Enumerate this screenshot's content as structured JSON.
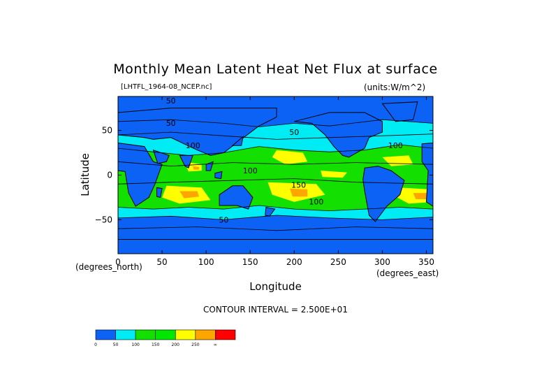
{
  "chart_data": {
    "type": "heatmap",
    "title": "Monthly Mean Latent Heat Net Flux at surface",
    "file_label": "[LHTFL_1964-08_NCEP.nc]",
    "units_label": "(units:W/m^2)",
    "xlabel": "Longitude",
    "ylabel": "Latitude",
    "x_units_label": "(degrees_east)",
    "y_units_label": "(degrees_north)",
    "contour_interval_label": "CONTOUR INTERVAL = 2.500E+01",
    "xlim": [
      0,
      357.5
    ],
    "ylim": [
      -88,
      88
    ],
    "x_ticks": [
      "0",
      "50",
      "100",
      "150",
      "200",
      "250",
      "300",
      "350"
    ],
    "x_tick_values": [
      0,
      50,
      100,
      150,
      200,
      250,
      300,
      350
    ],
    "y_ticks": [
      "50",
      "0",
      "−50"
    ],
    "y_tick_values": [
      50,
      0,
      -50
    ],
    "contour_labels": [
      {
        "text": "50",
        "lon": 60,
        "lat": 55
      },
      {
        "text": "100",
        "lon": 85,
        "lat": 30
      },
      {
        "text": "50",
        "lon": 200,
        "lat": 45
      },
      {
        "text": "100",
        "lon": 315,
        "lat": 30
      },
      {
        "text": "100",
        "lon": 150,
        "lat": 2
      },
      {
        "text": "100",
        "lon": 225,
        "lat": -33
      },
      {
        "text": "50",
        "lon": 120,
        "lat": -53
      },
      {
        "text": "150",
        "lon": 205,
        "lat": -14
      },
      {
        "text": "50",
        "lon": 60,
        "lat": 80
      }
    ],
    "colorbar": {
      "bins": [
        {
          "from": "0",
          "to": "50",
          "color": "#0b62f5"
        },
        {
          "from": "50",
          "to": "100",
          "color": "#00ecf4"
        },
        {
          "from": "100",
          "to": "150",
          "color": "#14e000"
        },
        {
          "from": "150",
          "to": "200",
          "color": "#00e700"
        },
        {
          "from": "200",
          "to": "250",
          "color": "#ffff00"
        },
        {
          "from": "250",
          "to": "300",
          "color": "#ffa500"
        },
        {
          "from": "300",
          "to": "∞",
          "color": "#ff0000"
        }
      ],
      "tick_labels": [
        "0",
        "50",
        "100",
        "150",
        "200",
        "250",
        "∞"
      ]
    },
    "colors": {
      "land": "#0b62f5",
      "ocean_low": "#00ecf4",
      "green": "#14e000",
      "yellow": "#ffff00",
      "orange": "#ffa500",
      "red": "#ff0000"
    }
  }
}
